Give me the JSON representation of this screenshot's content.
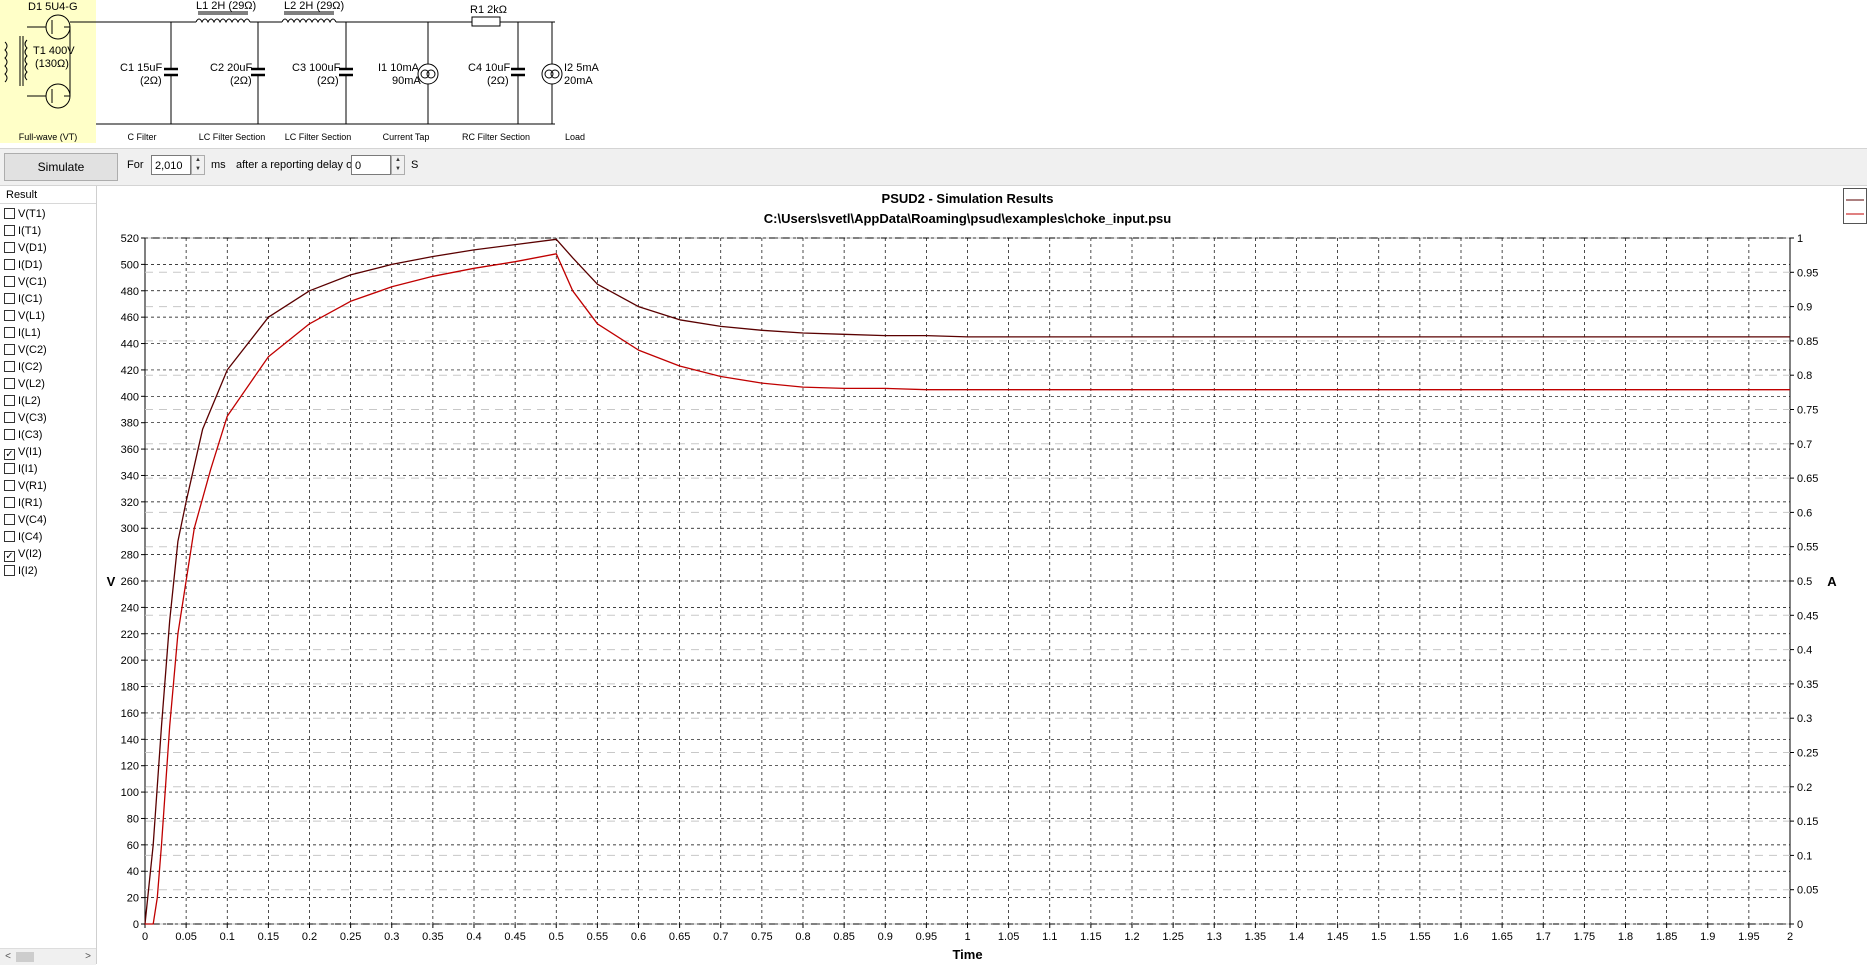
{
  "schematic": {
    "source": {
      "rectifier": "D1 5U4-G",
      "transformer_line1": "T1 400V",
      "transformer_line2": "(130Ω)",
      "section": "Full-wave (VT)"
    },
    "components": [
      {
        "id": "c1",
        "line1": "C1 15uF",
        "line2": "(2Ω)",
        "section": "C Filter"
      },
      {
        "id": "l1",
        "line1": "L1 2H (29Ω)"
      },
      {
        "id": "c2",
        "line1": "C2 20uF",
        "line2": "(2Ω)",
        "section": "LC Filter Section"
      },
      {
        "id": "l2",
        "line1": "L2 2H (29Ω)"
      },
      {
        "id": "c3",
        "line1": "C3 100uF",
        "line2": "(2Ω)",
        "section": "LC Filter Section"
      },
      {
        "id": "i1",
        "line1": "I1 10mA",
        "line2": "90mA",
        "section": "Current Tap"
      },
      {
        "id": "r1",
        "line1": "R1 2kΩ"
      },
      {
        "id": "c4",
        "line1": "C4 10uF",
        "line2": "(2Ω)",
        "section": "RC Filter Section"
      },
      {
        "id": "i2",
        "line1": "I2 5mA",
        "line2": "20mA",
        "section": "Load"
      }
    ]
  },
  "toolbar": {
    "simulate_label": "Simulate",
    "for_label": "For",
    "duration_value": "2,010",
    "ms_label": "ms",
    "delay_label": "after a reporting delay of",
    "delay_value": "0",
    "s_label": "S"
  },
  "results": {
    "header": "Result",
    "items": [
      {
        "label": "V(T1)",
        "checked": false
      },
      {
        "label": "I(T1)",
        "checked": false
      },
      {
        "label": "V(D1)",
        "checked": false
      },
      {
        "label": "I(D1)",
        "checked": false
      },
      {
        "label": "V(C1)",
        "checked": false
      },
      {
        "label": "I(C1)",
        "checked": false
      },
      {
        "label": "V(L1)",
        "checked": false
      },
      {
        "label": "I(L1)",
        "checked": false
      },
      {
        "label": "V(C2)",
        "checked": false
      },
      {
        "label": "I(C2)",
        "checked": false
      },
      {
        "label": "V(L2)",
        "checked": false
      },
      {
        "label": "I(L2)",
        "checked": false
      },
      {
        "label": "V(C3)",
        "checked": false
      },
      {
        "label": "I(C3)",
        "checked": false
      },
      {
        "label": "V(I1)",
        "checked": true
      },
      {
        "label": "I(I1)",
        "checked": false
      },
      {
        "label": "V(R1)",
        "checked": false
      },
      {
        "label": "I(R1)",
        "checked": false
      },
      {
        "label": "V(C4)",
        "checked": false
      },
      {
        "label": "I(C4)",
        "checked": false
      },
      {
        "label": "V(I2)",
        "checked": true
      },
      {
        "label": "I(I2)",
        "checked": false
      }
    ],
    "check_mark": "✓"
  },
  "chart_data": {
    "type": "line",
    "title": "PSUD2 - Simulation Results",
    "subtitle": "C:\\Users\\svetl\\AppData\\Roaming\\psud\\examples\\choke_input.psu",
    "xlabel": "Time",
    "ylabel": "V",
    "y2label": "A",
    "xlim": [
      0,
      2
    ],
    "ylim": [
      0,
      520
    ],
    "y2lim": [
      0,
      1
    ],
    "x_ticks": [
      "0",
      "0.05",
      "0.1",
      "0.15",
      "0.2",
      "0.25",
      "0.3",
      "0.35",
      "0.4",
      "0.45",
      "0.5",
      "0.55",
      "0.6",
      "0.65",
      "0.7",
      "0.75",
      "0.8",
      "0.85",
      "0.9",
      "0.95",
      "1",
      "1.05",
      "1.1",
      "1.15",
      "1.2",
      "1.25",
      "1.3",
      "1.35",
      "1.4",
      "1.45",
      "1.5",
      "1.55",
      "1.6",
      "1.65",
      "1.7",
      "1.75",
      "1.8",
      "1.85",
      "1.9",
      "1.95",
      "2"
    ],
    "y_ticks": [
      "0",
      "20",
      "40",
      "60",
      "80",
      "100",
      "120",
      "140",
      "160",
      "180",
      "200",
      "220",
      "240",
      "260",
      "280",
      "300",
      "320",
      "340",
      "360",
      "380",
      "400",
      "420",
      "440",
      "460",
      "480",
      "500",
      "520"
    ],
    "y2_ticks": [
      "0",
      "0.05",
      "0.1",
      "0.15",
      "0.2",
      "0.25",
      "0.3",
      "0.35",
      "0.4",
      "0.45",
      "0.5",
      "0.55",
      "0.6",
      "0.65",
      "0.7",
      "0.75",
      "0.8",
      "0.85",
      "0.9",
      "0.95",
      "1"
    ],
    "grid": true,
    "legend_position": "top-right",
    "series": [
      {
        "color": "#5a0000",
        "x": [
          0,
          0.01,
          0.02,
          0.03,
          0.04,
          0.05,
          0.07,
          0.1,
          0.15,
          0.2,
          0.25,
          0.3,
          0.35,
          0.4,
          0.45,
          0.5,
          0.52,
          0.55,
          0.6,
          0.65,
          0.7,
          0.75,
          0.8,
          0.85,
          0.9,
          0.95,
          1.0,
          1.2,
          1.5,
          2.0
        ],
        "y": [
          0,
          60,
          150,
          230,
          290,
          320,
          375,
          420,
          460,
          480,
          492,
          500,
          506,
          511,
          515,
          519,
          505,
          485,
          468,
          458,
          453,
          450,
          448,
          447,
          446,
          446,
          445,
          445,
          445,
          445
        ]
      },
      {
        "color": "#c00000",
        "x": [
          0,
          0.01,
          0.015,
          0.02,
          0.03,
          0.04,
          0.05,
          0.06,
          0.08,
          0.1,
          0.15,
          0.2,
          0.25,
          0.3,
          0.35,
          0.4,
          0.45,
          0.5,
          0.52,
          0.55,
          0.6,
          0.65,
          0.7,
          0.75,
          0.8,
          0.85,
          0.9,
          0.95,
          1.0,
          1.2,
          1.5,
          2.0
        ],
        "y": [
          0,
          0,
          20,
          60,
          150,
          220,
          260,
          300,
          345,
          385,
          430,
          455,
          472,
          483,
          491,
          497,
          502,
          508,
          480,
          455,
          435,
          423,
          415,
          410,
          407,
          406,
          406,
          405,
          405,
          405,
          405,
          405
        ]
      }
    ]
  }
}
